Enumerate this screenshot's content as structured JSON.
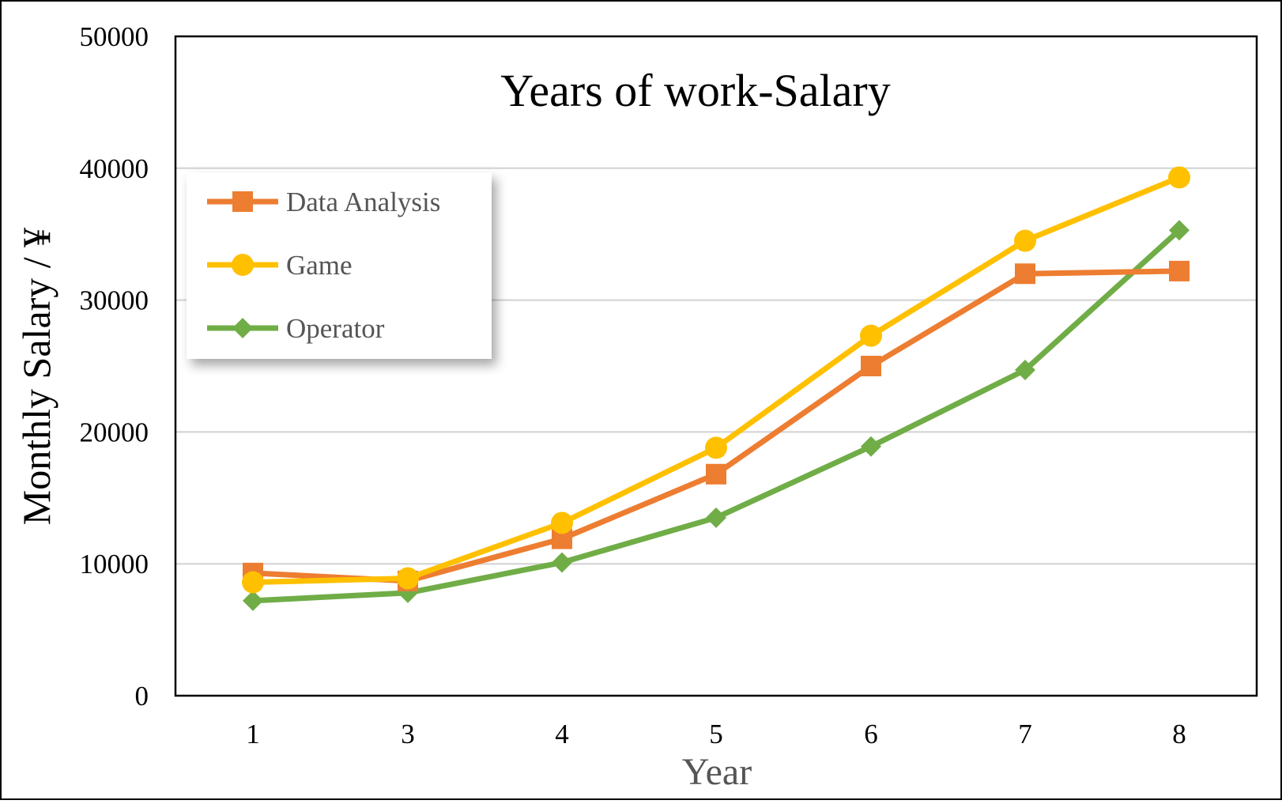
{
  "chart_data": {
    "type": "line",
    "title": "Years of work-Salary",
    "xlabel": "Year",
    "ylabel": "Monthly Salary / ¥",
    "categories": [
      "1",
      "3",
      "4",
      "5",
      "6",
      "7",
      "8"
    ],
    "ylim": [
      0,
      50000
    ],
    "yticks": [
      0,
      10000,
      20000,
      30000,
      40000,
      50000
    ],
    "ytick_labels": [
      "0",
      "10000",
      "20000",
      "30000",
      "40000",
      "50000"
    ],
    "grid": true,
    "legend_position": "top-left",
    "series": [
      {
        "name": "Data Analysis",
        "color": "#ED7D31",
        "marker": "square",
        "values": [
          9300,
          8700,
          11900,
          16800,
          25000,
          32000,
          32200
        ]
      },
      {
        "name": "Game",
        "color": "#FFC000",
        "marker": "circle",
        "values": [
          8600,
          8900,
          13100,
          18800,
          27300,
          34500,
          39300
        ]
      },
      {
        "name": "Operator",
        "color": "#70AD47",
        "marker": "diamond",
        "values": [
          7200,
          7800,
          10100,
          13500,
          18900,
          24700,
          35300
        ]
      }
    ]
  }
}
